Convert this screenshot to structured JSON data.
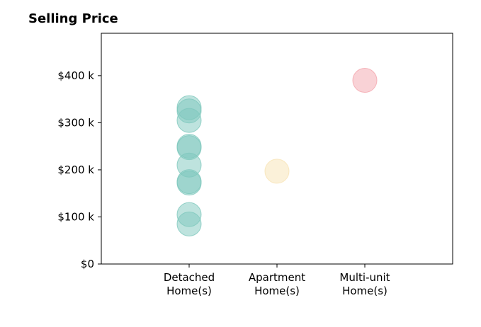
{
  "chart_data": {
    "type": "scatter",
    "title": "Selling Price",
    "xlabel": "",
    "ylabel": "",
    "categories": [
      "Detached\nHome(s)",
      "Apartment\nHome(s)",
      "Multi-unit\nHome(s)"
    ],
    "y_ticks": [
      "$0",
      "$100 k",
      "$200 k",
      "$300 k",
      "$400 k"
    ],
    "ylim": [
      0,
      490000
    ],
    "grid": false,
    "series": [
      {
        "category": "Detached\nHome(s)",
        "color": "#7ec8bd",
        "values": [
          85000,
          105000,
          172000,
          175000,
          210000,
          247000,
          250000,
          305000,
          325000,
          332000
        ]
      },
      {
        "category": "Apartment\nHome(s)",
        "color": "#f7e3b4",
        "values": [
          197000
        ]
      },
      {
        "category": "Multi-unit\nHome(s)",
        "color": "#f4a5ad",
        "values": [
          390000
        ]
      }
    ]
  }
}
